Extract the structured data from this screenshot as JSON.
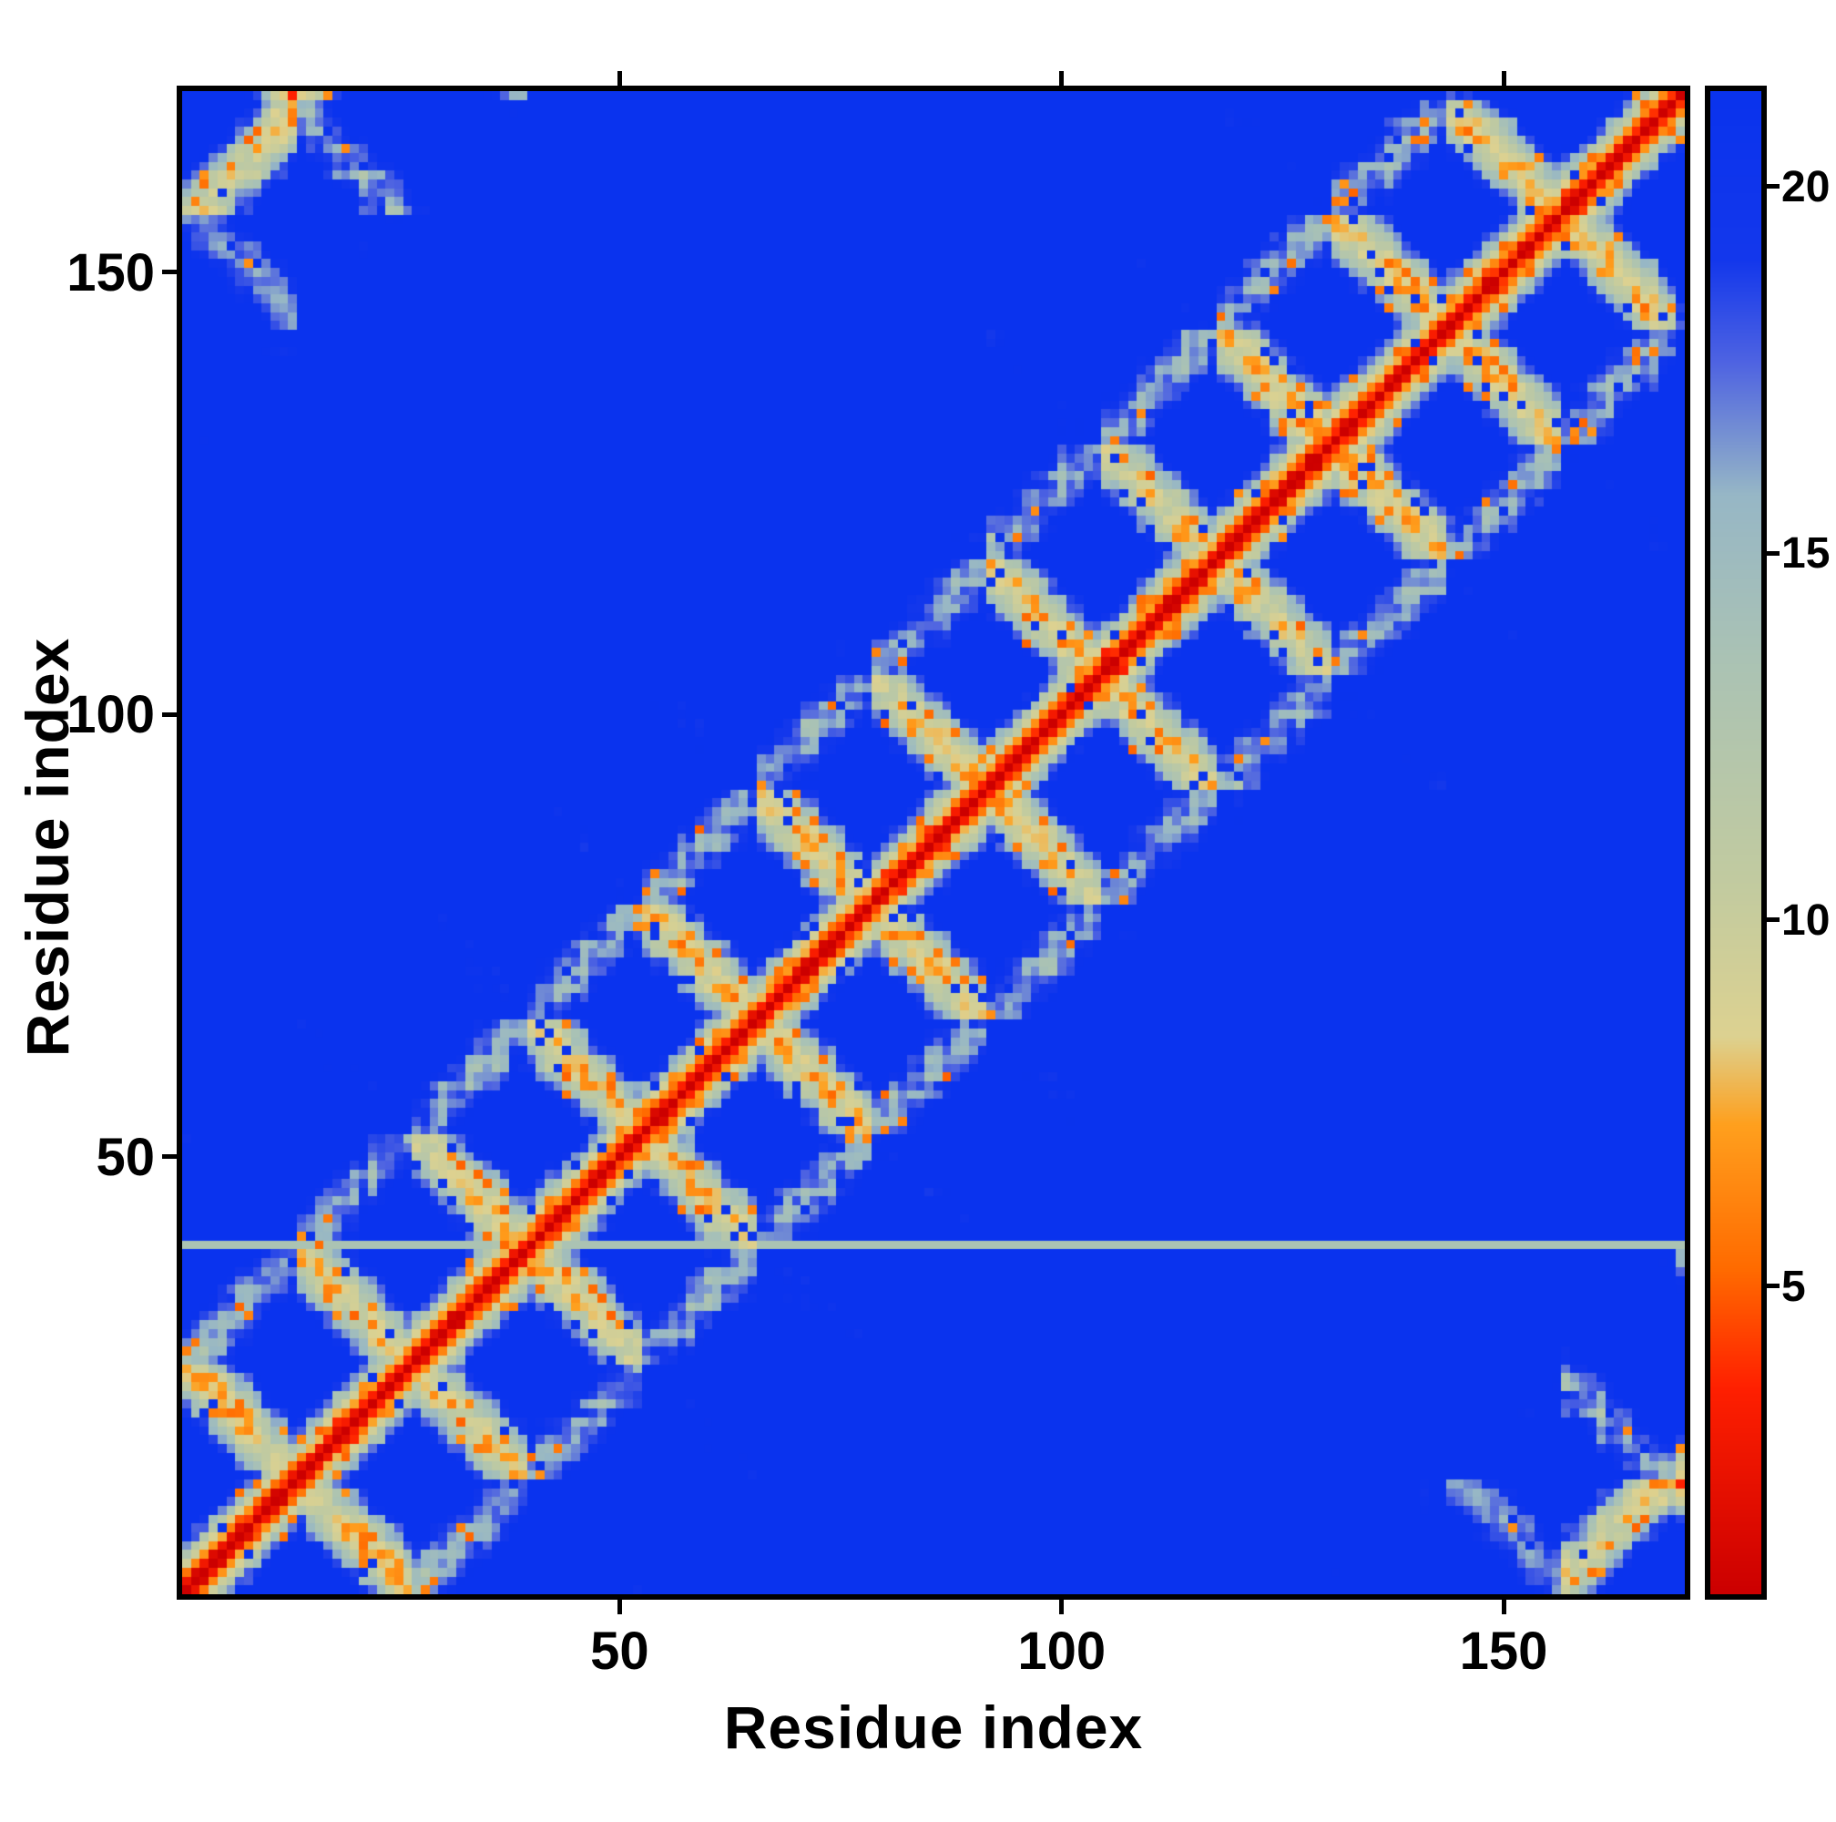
{
  "page": {
    "background": "#ffffff"
  },
  "chart_data": {
    "type": "heatmap",
    "title": "",
    "xlabel": "Residue index",
    "ylabel": "Residue index",
    "n_residues": 170,
    "x_range": [
      1,
      170
    ],
    "y_range": [
      1,
      170
    ],
    "x_ticks": [
      50,
      100,
      150
    ],
    "y_ticks": [
      50,
      100,
      150
    ],
    "grid": false,
    "background_color": "#0a33ee",
    "description": "Symmetric residue-residue distance / contact map of a ~170-residue protein. Red diagonal (short distances), anti-diagonal hairpin bands forming a diamond lattice of pale gray-green contact regions speckled with orange (close contacts) and blue (far) cells on a deep blue background. Thin pale horizontal artifact line at residue 40.",
    "colorbar": {
      "ticks": [
        5,
        10,
        15,
        20
      ],
      "vmin": 0.8,
      "vmax": 21.3,
      "orientation": "vertical-right",
      "colormap_stops": [
        [
          0.8,
          "#cc0000"
        ],
        [
          3.6,
          "#ff2000"
        ],
        [
          5.2,
          "#ff6a00"
        ],
        [
          7.2,
          "#ffa01e"
        ],
        [
          8.4,
          "#ddd291"
        ],
        [
          10.5,
          "#c2cba0"
        ],
        [
          13.5,
          "#abc3b4"
        ],
        [
          15.8,
          "#97b7c6"
        ],
        [
          17.6,
          "#4f64e2"
        ],
        [
          19.0,
          "#1438ec"
        ],
        [
          21.3,
          "#0a33ee"
        ]
      ]
    },
    "matrix_generator": {
      "n": 170,
      "strand_length": 13,
      "n_strands": 13,
      "ca_spacing": 3.35,
      "barrel_radius": 17.1,
      "noise_amp": 1.5,
      "pair_jitter": 2.2,
      "seed": 9,
      "speckle_orange_p": 0.1,
      "speckle_blue_p": 0.06,
      "artifact_row": 40,
      "artifact_cap": 13.4
    }
  }
}
